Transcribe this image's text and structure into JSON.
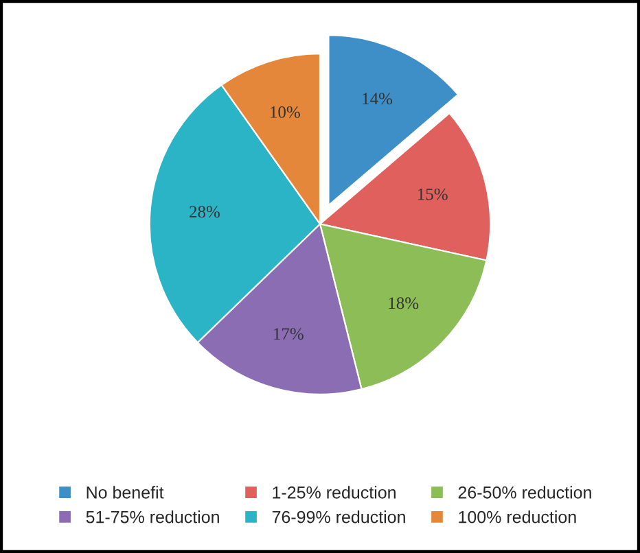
{
  "chart_data": {
    "type": "pie",
    "categories": [
      "No benefit",
      "1-25% reduction",
      "26-50% reduction",
      "51-75% reduction",
      "76-99% reduction",
      "100% reduction"
    ],
    "values": [
      14,
      15,
      18,
      17,
      28,
      10
    ],
    "colors": [
      "#3e8ec8",
      "#e0605e",
      "#8cbd57",
      "#8a6db3",
      "#2bb4c6",
      "#e4873a"
    ],
    "value_labels": [
      "14%",
      "15%",
      "18%",
      "17%",
      "28%",
      "10%"
    ],
    "legend": "bottom"
  }
}
